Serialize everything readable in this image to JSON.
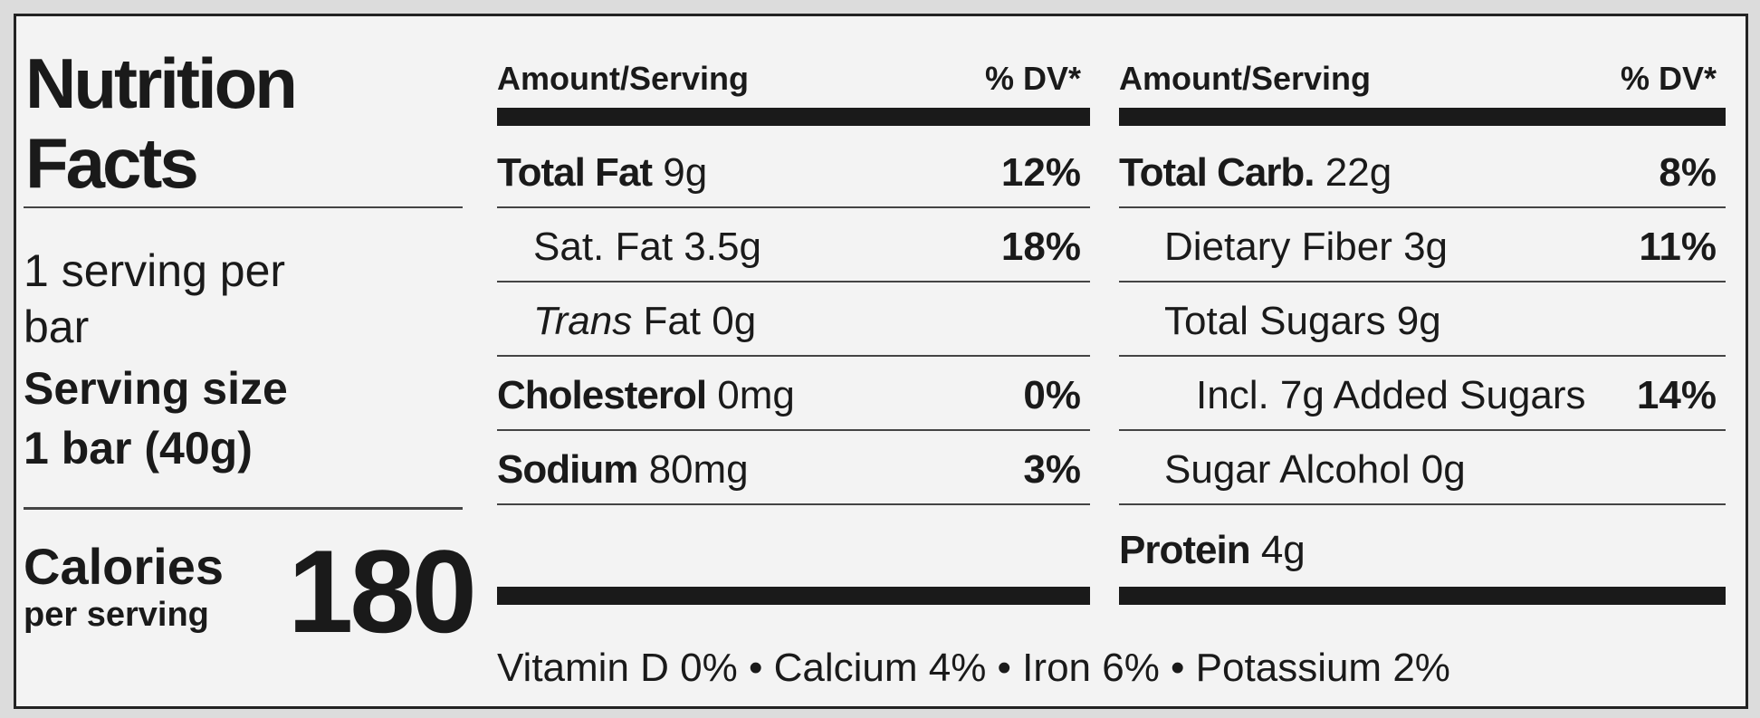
{
  "header": {
    "title": "Nutrition Facts",
    "servings": "1 serving per bar",
    "serving_size_label": "Serving size",
    "serving_size_value": "1 bar (40g)",
    "calories_label": "Calories",
    "calories_sub": "per serving",
    "calories_value": "180"
  },
  "left": {
    "header_amount": "Amount/Serving",
    "header_dv": "% DV*",
    "rows": [
      {
        "name": "Total Fat",
        "amount": "9g",
        "dv": "12%"
      },
      {
        "label": "Sat. Fat 3.5g",
        "dv": "18%"
      },
      {
        "italic": "Trans",
        "label": "Fat 0g"
      },
      {
        "name": "Cholesterol",
        "amount": "0mg",
        "dv": "0%"
      },
      {
        "name": "Sodium",
        "amount": "80mg",
        "dv": "3%"
      }
    ]
  },
  "right": {
    "header_amount": "Amount/Serving",
    "header_dv": "% DV*",
    "rows": [
      {
        "name": "Total Carb.",
        "amount": "22g",
        "dv": "8%"
      },
      {
        "label": "Dietary Fiber 3g",
        "dv": "11%"
      },
      {
        "label": "Total Sugars 9g"
      },
      {
        "label": "Incl. 7g Added Sugars",
        "dv": "14%"
      },
      {
        "label": "Sugar Alcohol 0g"
      },
      {
        "name": "Protein",
        "amount": "4g"
      }
    ]
  },
  "footer": "Vitamin D 0% • Calcium 4% • Iron 6% • Potassium 2%"
}
